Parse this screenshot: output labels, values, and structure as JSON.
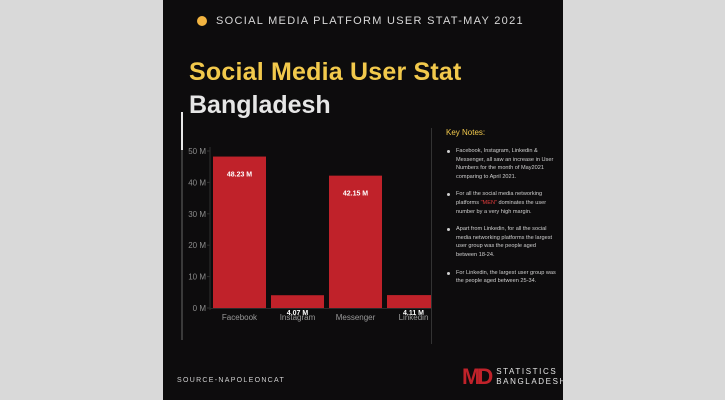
{
  "header": {
    "tag": "SOCIAL MEDIA PLATFORM USER STAT-MAY 2021",
    "title": "Social Media User Stat",
    "subtitle": "Bangladesh"
  },
  "chart_data": {
    "type": "bar",
    "title": "Social Media User Stat",
    "subtitle": "Bangladesh",
    "categories": [
      "Facebook",
      "Instagram",
      "Messenger",
      "Linkedin"
    ],
    "values": [
      48.23,
      4.07,
      42.15,
      4.11
    ],
    "value_labels": [
      "48.23 M",
      "4.07 M",
      "42.15 M",
      "4.11 M"
    ],
    "yticks": [
      0,
      10,
      20,
      30,
      40,
      50
    ],
    "ytick_labels": [
      "0 M",
      "10 M",
      "20 M",
      "30 M",
      "40 M",
      "50 M"
    ],
    "ylim": [
      0,
      50
    ],
    "xlabel": "",
    "ylabel": "",
    "grid": false,
    "bar_color": "#c0222a"
  },
  "notes": {
    "title": "Key Notes:",
    "items": [
      {
        "text": "Facebook, Instagram, Linkedin & Messenger, all saw an increase in User Numbers for the month of May2021 comparing to April 2021."
      },
      {
        "pre": "For all the social media networking platforms ",
        "emph": "\"MEN\"",
        "post": " dominates the user number by a very high margin."
      },
      {
        "text": "Apart from Linkedin, for all the social media networking platforms the largest user group was the people aged between 18-24."
      },
      {
        "text": "For Linkedin, the largest user group was the people aged between 25-34."
      }
    ]
  },
  "footer": {
    "source": "SOURCE-NAPOLEONCAT",
    "logo_mark": "MD",
    "logo_line1": "STATISTICS",
    "logo_line2": "BANGLADESH"
  },
  "colors": {
    "accent": "#f2c94c",
    "bar": "#c0222a",
    "background": "#0d0c0d"
  }
}
